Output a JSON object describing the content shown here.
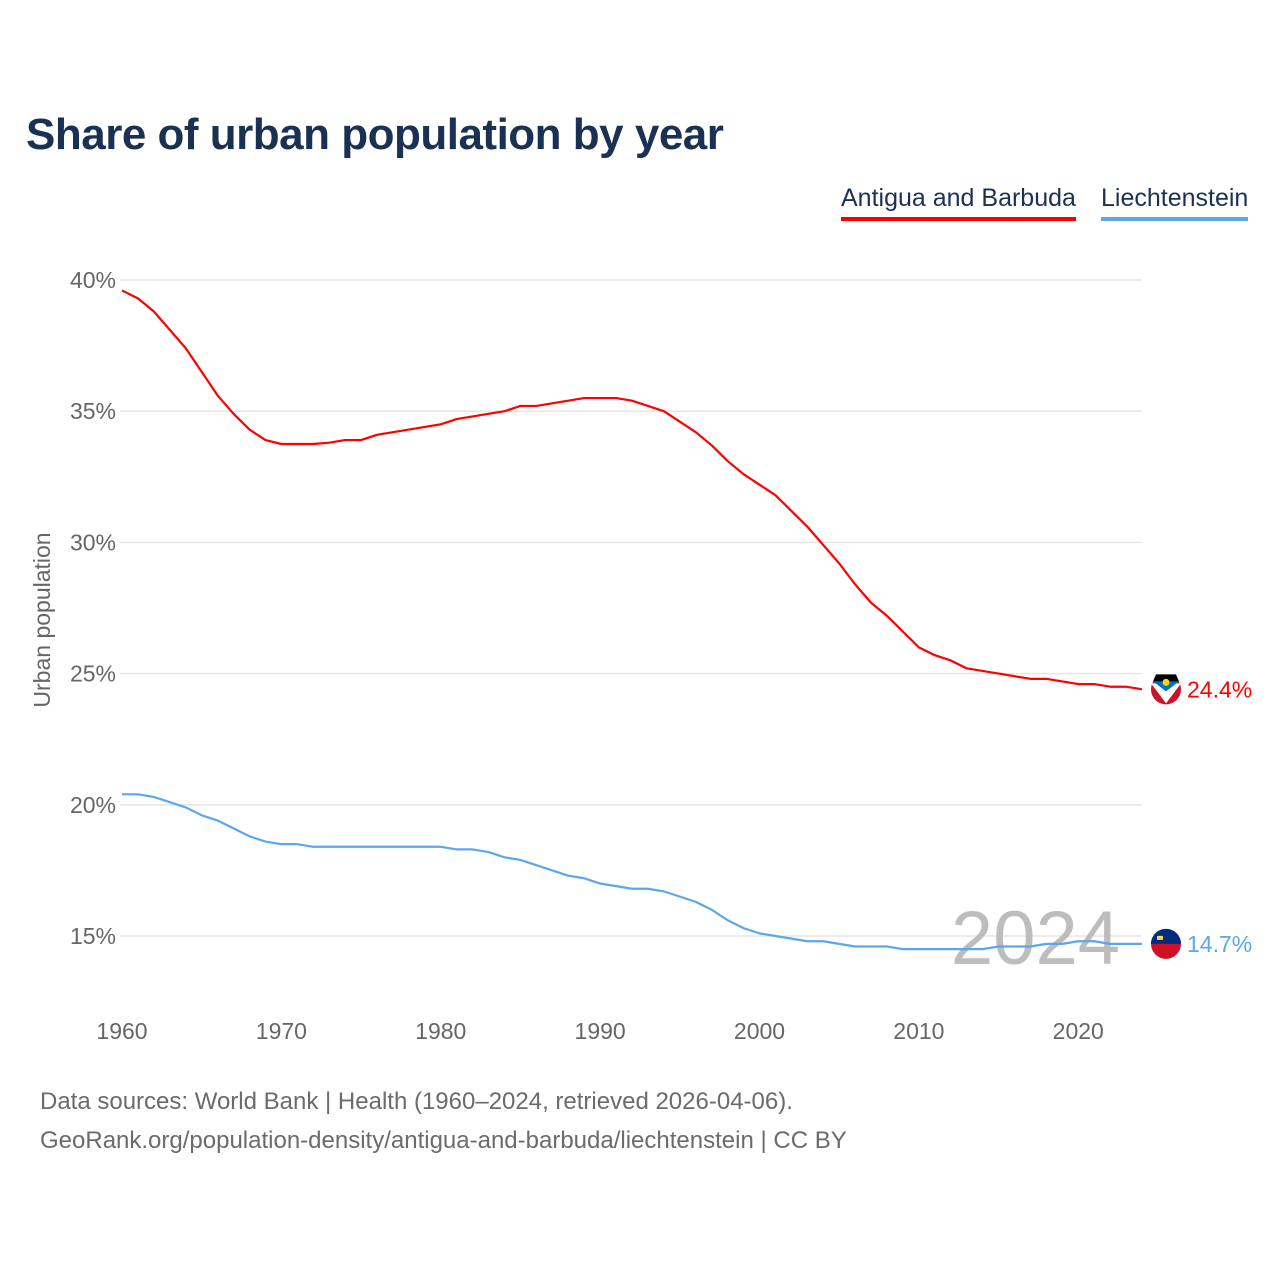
{
  "chart_data": {
    "type": "line",
    "title": "Share of urban population by year",
    "ylabel": "Urban population",
    "xlabel": "",
    "xlim": [
      1960,
      2024
    ],
    "ylim": [
      15,
      40
    ],
    "xticks": [
      1960,
      1970,
      1980,
      1990,
      2000,
      2010,
      2020
    ],
    "xtick_labels": [
      "1960",
      "1970",
      "1980",
      "1990",
      "2000",
      "2010",
      "2020"
    ],
    "yticks": [
      15,
      20,
      25,
      30,
      35,
      40
    ],
    "ytick_labels": [
      "15%",
      "20%",
      "25%",
      "30%",
      "35%",
      "40%"
    ],
    "grid": true,
    "legend_position": "top-right",
    "year_watermark": "2024",
    "x": [
      1960,
      1961,
      1962,
      1963,
      1964,
      1965,
      1966,
      1967,
      1968,
      1969,
      1970,
      1971,
      1972,
      1973,
      1974,
      1975,
      1976,
      1977,
      1978,
      1979,
      1980,
      1981,
      1982,
      1983,
      1984,
      1985,
      1986,
      1987,
      1988,
      1989,
      1990,
      1991,
      1992,
      1993,
      1994,
      1995,
      1996,
      1997,
      1998,
      1999,
      2000,
      2001,
      2002,
      2003,
      2004,
      2005,
      2006,
      2007,
      2008,
      2009,
      2010,
      2011,
      2012,
      2013,
      2014,
      2015,
      2016,
      2017,
      2018,
      2019,
      2020,
      2021,
      2022,
      2023,
      2024
    ],
    "series": [
      {
        "name": "Antigua and Barbuda",
        "color": "#ff0000",
        "end_label": "24.4%",
        "values": [
          39.6,
          39.3,
          38.8,
          38.1,
          37.4,
          36.5,
          35.6,
          34.9,
          34.3,
          33.9,
          33.75,
          33.75,
          33.75,
          33.8,
          33.9,
          33.9,
          34.1,
          34.2,
          34.3,
          34.4,
          34.5,
          34.7,
          34.8,
          34.9,
          35.0,
          35.2,
          35.2,
          35.3,
          35.4,
          35.5,
          35.5,
          35.5,
          35.4,
          35.2,
          35.0,
          34.6,
          34.2,
          33.7,
          33.1,
          32.6,
          32.2,
          31.8,
          31.2,
          30.6,
          29.9,
          29.2,
          28.4,
          27.7,
          27.2,
          26.6,
          26.0,
          25.7,
          25.5,
          25.2,
          25.1,
          25.0,
          24.9,
          24.8,
          24.8,
          24.7,
          24.6,
          24.6,
          24.5,
          24.5,
          24.4
        ]
      },
      {
        "name": "Liechtenstein",
        "color": "#5ea6ec",
        "end_label": "14.7%",
        "values": [
          20.4,
          20.4,
          20.3,
          20.1,
          19.9,
          19.6,
          19.4,
          19.1,
          18.8,
          18.6,
          18.5,
          18.5,
          18.4,
          18.4,
          18.4,
          18.4,
          18.4,
          18.4,
          18.4,
          18.4,
          18.4,
          18.3,
          18.3,
          18.2,
          18.0,
          17.9,
          17.7,
          17.5,
          17.3,
          17.2,
          17.0,
          16.9,
          16.8,
          16.8,
          16.7,
          16.5,
          16.3,
          16.0,
          15.6,
          15.3,
          15.1,
          15.0,
          14.9,
          14.8,
          14.8,
          14.7,
          14.6,
          14.6,
          14.6,
          14.5,
          14.5,
          14.5,
          14.5,
          14.5,
          14.5,
          14.6,
          14.6,
          14.6,
          14.7,
          14.7,
          14.8,
          14.8,
          14.7,
          14.7,
          14.7
        ]
      }
    ]
  },
  "footer": {
    "line1": "Data sources: World Bank | Health (1960–2024, retrieved 2026-04-06).",
    "line2": "GeoRank.org/population-density/antigua-and-barbuda/liechtenstein | CC BY"
  }
}
